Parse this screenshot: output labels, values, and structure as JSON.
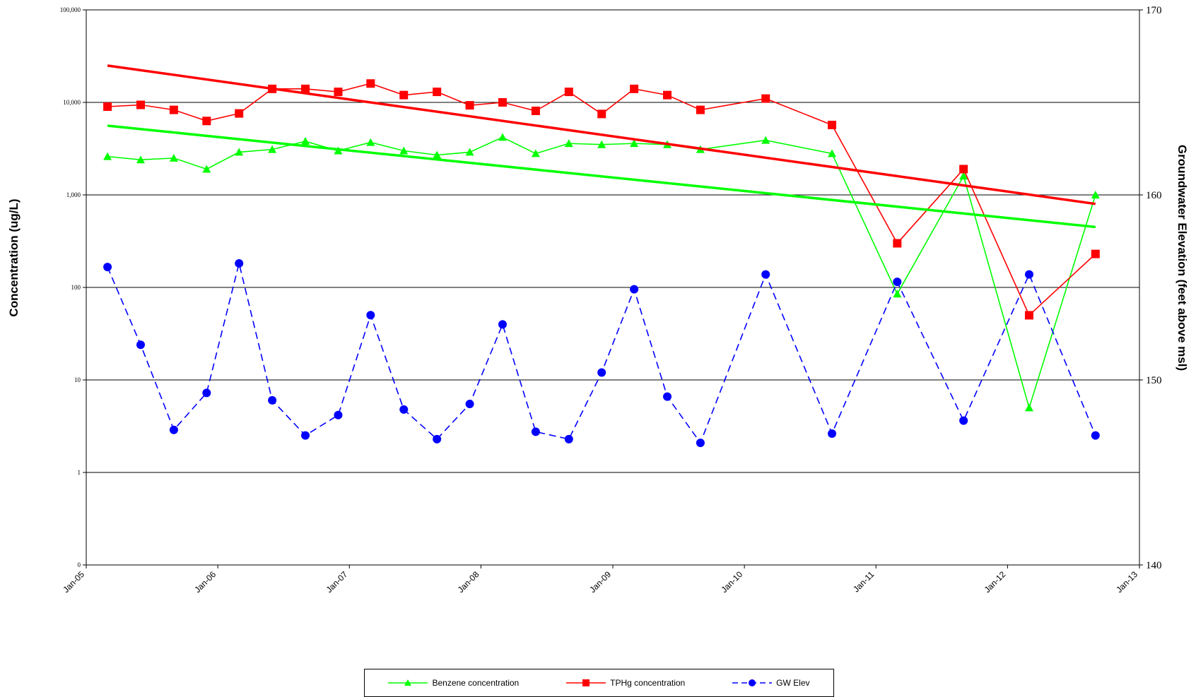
{
  "chart_data": {
    "type": "line",
    "y_left": {
      "label": "Concentration (ug/L)",
      "scale": "log",
      "range": [
        0,
        100000
      ],
      "ticks": [
        "0",
        "1",
        "10",
        "100",
        "1,000",
        "10,000",
        "100,000"
      ],
      "tick_values": [
        0.1,
        1,
        10,
        100,
        1000,
        10000,
        100000
      ]
    },
    "y_right": {
      "label": "Groundwater Elevation (feet above msl)",
      "scale": "linear",
      "range": [
        140,
        170
      ],
      "ticks": [
        "140",
        "150",
        "160",
        "170"
      ]
    },
    "x_axis": {
      "range": [
        "2005-01-01",
        "2013-01-01"
      ],
      "ticks": [
        "Jan-05",
        "Jan-06",
        "Jan-07",
        "Jan-08",
        "Jan-09",
        "Jan-10",
        "Jan-11",
        "Jan-12",
        "Jan-13"
      ],
      "tick_dates": [
        "2005-01-01",
        "2006-01-01",
        "2007-01-01",
        "2008-01-01",
        "2009-01-01",
        "2010-01-01",
        "2011-01-01",
        "2012-01-01",
        "2013-01-01"
      ]
    },
    "gridlines": "horizontal, left axis decades",
    "legend_position": "bottom-center",
    "series": [
      {
        "name": "Benzene concentration",
        "axis": "left",
        "color": "#00ff00",
        "marker": "triangle",
        "line": "solid",
        "x": [
          "2005-03-01",
          "2005-06-01",
          "2005-09-01",
          "2005-12-01",
          "2006-03-01",
          "2006-06-01",
          "2006-09-01",
          "2006-12-01",
          "2007-03-01",
          "2007-06-01",
          "2007-09-01",
          "2007-12-01",
          "2008-03-01",
          "2008-06-01",
          "2008-09-01",
          "2008-12-01",
          "2009-03-01",
          "2009-06-01",
          "2009-09-01",
          "2010-03-01",
          "2010-09-01",
          "2011-03-01",
          "2011-09-01",
          "2012-03-01",
          "2012-09-01"
        ],
        "y": [
          2600,
          2400,
          2500,
          1900,
          2900,
          3100,
          3800,
          3000,
          3700,
          3000,
          2700,
          2900,
          4200,
          2800,
          3600,
          3500,
          3600,
          3500,
          3100,
          3900,
          2800,
          85,
          1600,
          5,
          1000
        ]
      },
      {
        "name": "TPHg concentration",
        "axis": "left",
        "color": "#ff0000",
        "marker": "square",
        "line": "solid",
        "x": [
          "2005-03-01",
          "2005-06-01",
          "2005-09-01",
          "2005-12-01",
          "2006-03-01",
          "2006-06-01",
          "2006-09-01",
          "2006-12-01",
          "2007-03-01",
          "2007-06-01",
          "2007-09-01",
          "2007-12-01",
          "2008-03-01",
          "2008-06-01",
          "2008-09-01",
          "2008-12-01",
          "2009-03-01",
          "2009-06-01",
          "2009-09-01",
          "2010-03-01",
          "2010-09-01",
          "2011-03-01",
          "2011-09-01",
          "2012-03-01",
          "2012-09-01"
        ],
        "y": [
          9000,
          9400,
          8300,
          6300,
          7600,
          14000,
          14000,
          13000,
          16000,
          12000,
          13000,
          9300,
          10000,
          8100,
          13000,
          7500,
          14000,
          12000,
          8300,
          11000,
          5700,
          300,
          1900,
          50,
          230
        ]
      },
      {
        "name": "GW Elev",
        "axis": "right",
        "color": "#0000ff",
        "marker": "circle",
        "line": "dashed",
        "x": [
          "2005-03-01",
          "2005-06-01",
          "2005-09-01",
          "2005-12-01",
          "2006-03-01",
          "2006-06-01",
          "2006-09-01",
          "2006-12-01",
          "2007-03-01",
          "2007-06-01",
          "2007-09-01",
          "2007-12-01",
          "2008-03-01",
          "2008-06-01",
          "2008-09-01",
          "2008-12-01",
          "2009-03-01",
          "2009-06-01",
          "2009-09-01",
          "2010-03-01",
          "2010-09-01",
          "2011-03-01",
          "2011-09-01",
          "2012-03-01",
          "2012-09-01"
        ],
        "y": [
          156.1,
          151.9,
          147.3,
          149.3,
          156.3,
          148.9,
          147.0,
          148.1,
          153.5,
          148.4,
          146.8,
          148.7,
          153.0,
          147.2,
          146.8,
          150.4,
          154.9,
          149.1,
          146.6,
          155.7,
          147.1,
          155.3,
          147.8,
          155.7,
          147.0
        ]
      }
    ],
    "trendlines": [
      {
        "series": "TPHg concentration",
        "color": "#ff0000",
        "x": [
          "2005-03-01",
          "2012-09-01"
        ],
        "y": [
          25000,
          800
        ]
      },
      {
        "series": "Benzene concentration",
        "color": "#00ff00",
        "x": [
          "2005-03-01",
          "2012-09-01"
        ],
        "y": [
          5600,
          450
        ]
      }
    ]
  }
}
